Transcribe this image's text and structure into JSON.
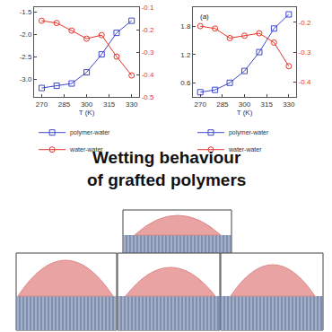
{
  "heading": [
    "Wetting behaviour",
    "of grafted polymers"
  ],
  "chart_data": [
    {
      "type": "line",
      "x_label": "T (K)",
      "x": [
        270,
        280,
        290,
        300,
        310,
        320,
        330
      ],
      "xlim": [
        265,
        335
      ],
      "xticks": [
        270,
        285,
        300,
        315,
        330
      ],
      "ylim": [
        -3.4,
        -1.4
      ],
      "yticks": [
        {
          "value": -3,
          "label": "-3.0"
        },
        -2.5,
        {
          "value": -2,
          "label": "-2.0"
        },
        -1.5
      ],
      "y2lim": [
        -0.5,
        -0.1
      ],
      "y2ticks": [
        -0.5,
        -0.4,
        -0.3,
        -0.2,
        -0.1
      ],
      "grid": false,
      "legend": "bottom",
      "series": [
        {
          "name": "polymer-water",
          "color": "#3f48cc",
          "marker": "square-open",
          "values": [
            -3.2,
            -3.15,
            -3.1,
            -2.85,
            -2.45,
            -1.97,
            -1.7
          ]
        },
        {
          "name": "water-water",
          "color": "#e8332a",
          "marker": "circle-open",
          "axis": "y2",
          "values": [
            -0.16,
            -0.17,
            -0.204,
            -0.24,
            -0.224,
            -0.32,
            -0.404
          ]
        }
      ]
    },
    {
      "type": "line",
      "x_label": "T (K)",
      "annotation": "(a)",
      "x": [
        270,
        280,
        290,
        300,
        310,
        320,
        330
      ],
      "xlim": [
        265,
        335
      ],
      "xticks": [
        270,
        285,
        300,
        315,
        330
      ],
      "ylim": [
        0.3,
        2.2
      ],
      "yticks": [
        0.6,
        1.2,
        1.8
      ],
      "y2lim": [
        -0.45,
        -0.15
      ],
      "y2ticks": [
        -0.4,
        -0.3,
        -0.2
      ],
      "grid": false,
      "legend": "bottom",
      "series": [
        {
          "name": "polymer-water",
          "color": "#3f48cc",
          "marker": "square-open",
          "values": [
            0.4,
            0.45,
            0.6,
            0.85,
            1.25,
            1.75,
            2.05
          ]
        },
        {
          "name": "water-water",
          "color": "#e8332a",
          "marker": "circle-open",
          "axis": "y2",
          "values": [
            -0.213,
            -0.221,
            -0.253,
            -0.245,
            -0.237,
            -0.268,
            -0.347
          ]
        }
      ]
    }
  ]
}
